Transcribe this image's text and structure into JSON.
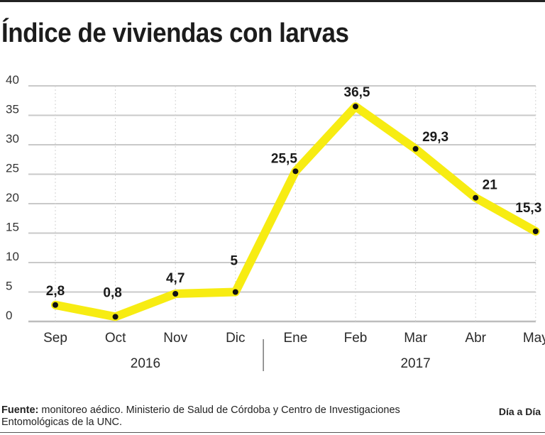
{
  "chart_data": {
    "type": "line",
    "title": "Índice de viviendas con larvas",
    "categories": [
      "Sep",
      "Oct",
      "Nov",
      "Dic",
      "Ene",
      "Feb",
      "Mar",
      "Abr",
      "May"
    ],
    "values": [
      2.8,
      0.8,
      4.7,
      5,
      25.5,
      36.5,
      29.3,
      21,
      15.3
    ],
    "value_labels": [
      "2,8",
      "0,8",
      "4,7",
      "5",
      "25,5",
      "36,5",
      "29,3",
      "21",
      "15,3"
    ],
    "yticks": [
      0,
      5,
      10,
      15,
      20,
      25,
      30,
      35,
      40
    ],
    "ylim": [
      0,
      40
    ],
    "year_groups": [
      {
        "label": "2016",
        "from": 0,
        "to": 3
      },
      {
        "label": "2017",
        "from": 4,
        "to": 8
      }
    ],
    "line_color": "#f7ec12",
    "grid_color": "#c9c9c9",
    "grid": true
  },
  "footer": {
    "source_label": "Fuente:",
    "source_text": " monitoreo aédico. Ministerio de Salud de Córdoba y Centro de Investigaciones Entomológicas de la UNC."
  },
  "brand": "Día a Día"
}
